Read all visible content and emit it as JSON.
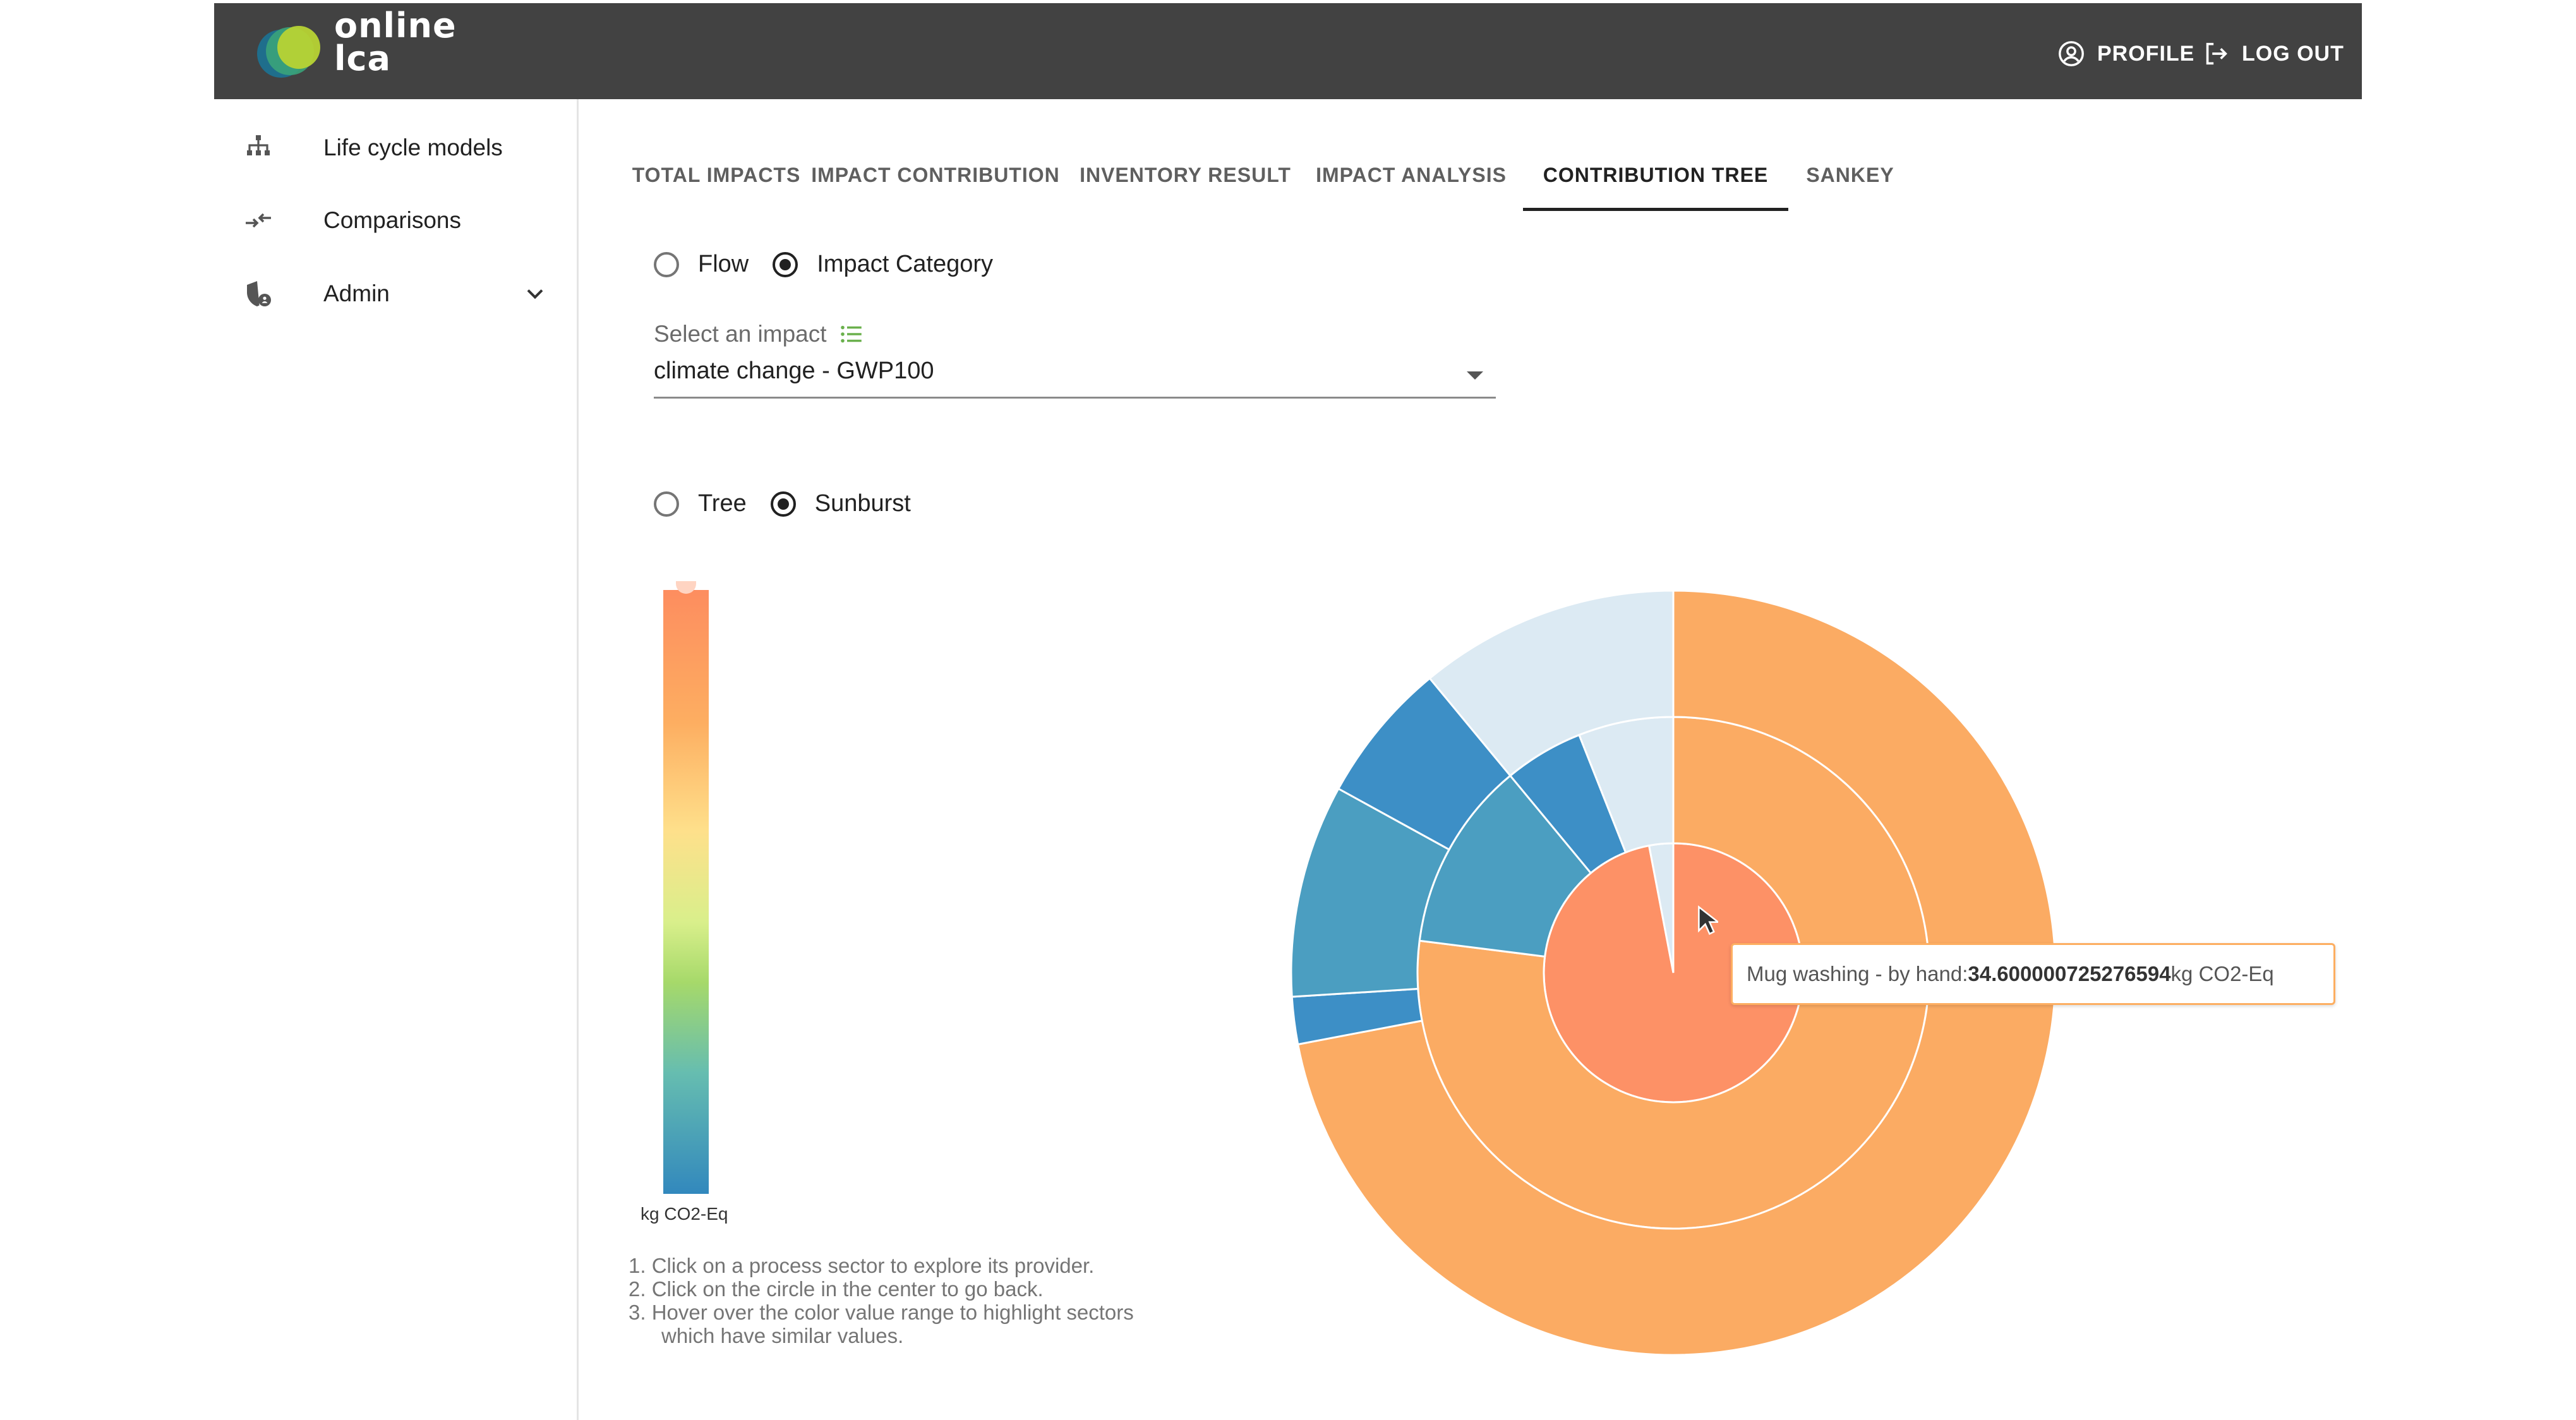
{
  "header": {
    "logo_text_line1": "online",
    "logo_text_line2": "lca",
    "profile_label": "PROFILE",
    "logout_label": "LOG OUT"
  },
  "sidebar": {
    "items": [
      {
        "label": "Life cycle models",
        "icon": "sitemap-icon"
      },
      {
        "label": "Comparisons",
        "icon": "compare-arrows-icon"
      },
      {
        "label": "Admin",
        "icon": "shield-account-icon"
      }
    ]
  },
  "tabs": [
    {
      "label": "TOTAL IMPACTS",
      "active": false
    },
    {
      "label": "IMPACT CONTRIBUTION",
      "active": false
    },
    {
      "label": "INVENTORY RESULT",
      "active": false
    },
    {
      "label": "IMPACT ANALYSIS",
      "active": false
    },
    {
      "label": "CONTRIBUTION TREE",
      "active": true
    },
    {
      "label": "SANKEY",
      "active": false
    }
  ],
  "mode_radio": {
    "options": [
      "Flow",
      "Impact Category"
    ],
    "selected": "Impact Category"
  },
  "impact_select": {
    "label": "Select an impact",
    "value": "climate change - GWP100"
  },
  "view_radio": {
    "options": [
      "Tree",
      "Sunburst"
    ],
    "selected": "Sunburst"
  },
  "color_scale": {
    "unit": "kg CO2-Eq",
    "colors": [
      "#fd8d5f",
      "#fdae61",
      "#fee08b",
      "#a6d96a",
      "#66bdb0",
      "#3288bd"
    ]
  },
  "instructions": [
    "1. Click on a process sector to explore its provider.",
    "2. Click on the circle in the center to go back.",
    "3. Hover over the color value range to highlight sectors",
    "which have similar values."
  ],
  "tooltip": {
    "prefix": "Mug washing - by hand: ",
    "value": "34.600000725276594",
    "unit": " kg CO2-Eq"
  },
  "chart_data": {
    "type": "sunburst",
    "rings": [
      {
        "name": "ring-1",
        "segments": [
          {
            "color": "#fd9166",
            "share": 0.97
          },
          {
            "color": "#dceaf3",
            "share": 0.03
          }
        ]
      },
      {
        "name": "ring-2",
        "segments": [
          {
            "color": "#fbab63",
            "share": 0.77
          },
          {
            "color": "#4b9ec1",
            "share": 0.12
          },
          {
            "color": "#3d8fc6",
            "share": 0.05
          },
          {
            "color": "#dceaf3",
            "share": 0.06
          }
        ]
      },
      {
        "name": "ring-3",
        "segments": [
          {
            "color": "#fbab63",
            "share": 0.72
          },
          {
            "color": "#3d8fc6",
            "share": 0.02
          },
          {
            "color": "#4b9ec1",
            "share": 0.09
          },
          {
            "color": "#3d8fc6",
            "share": 0.06
          },
          {
            "color": "#dceaf3",
            "share": 0.11
          }
        ]
      }
    ]
  }
}
